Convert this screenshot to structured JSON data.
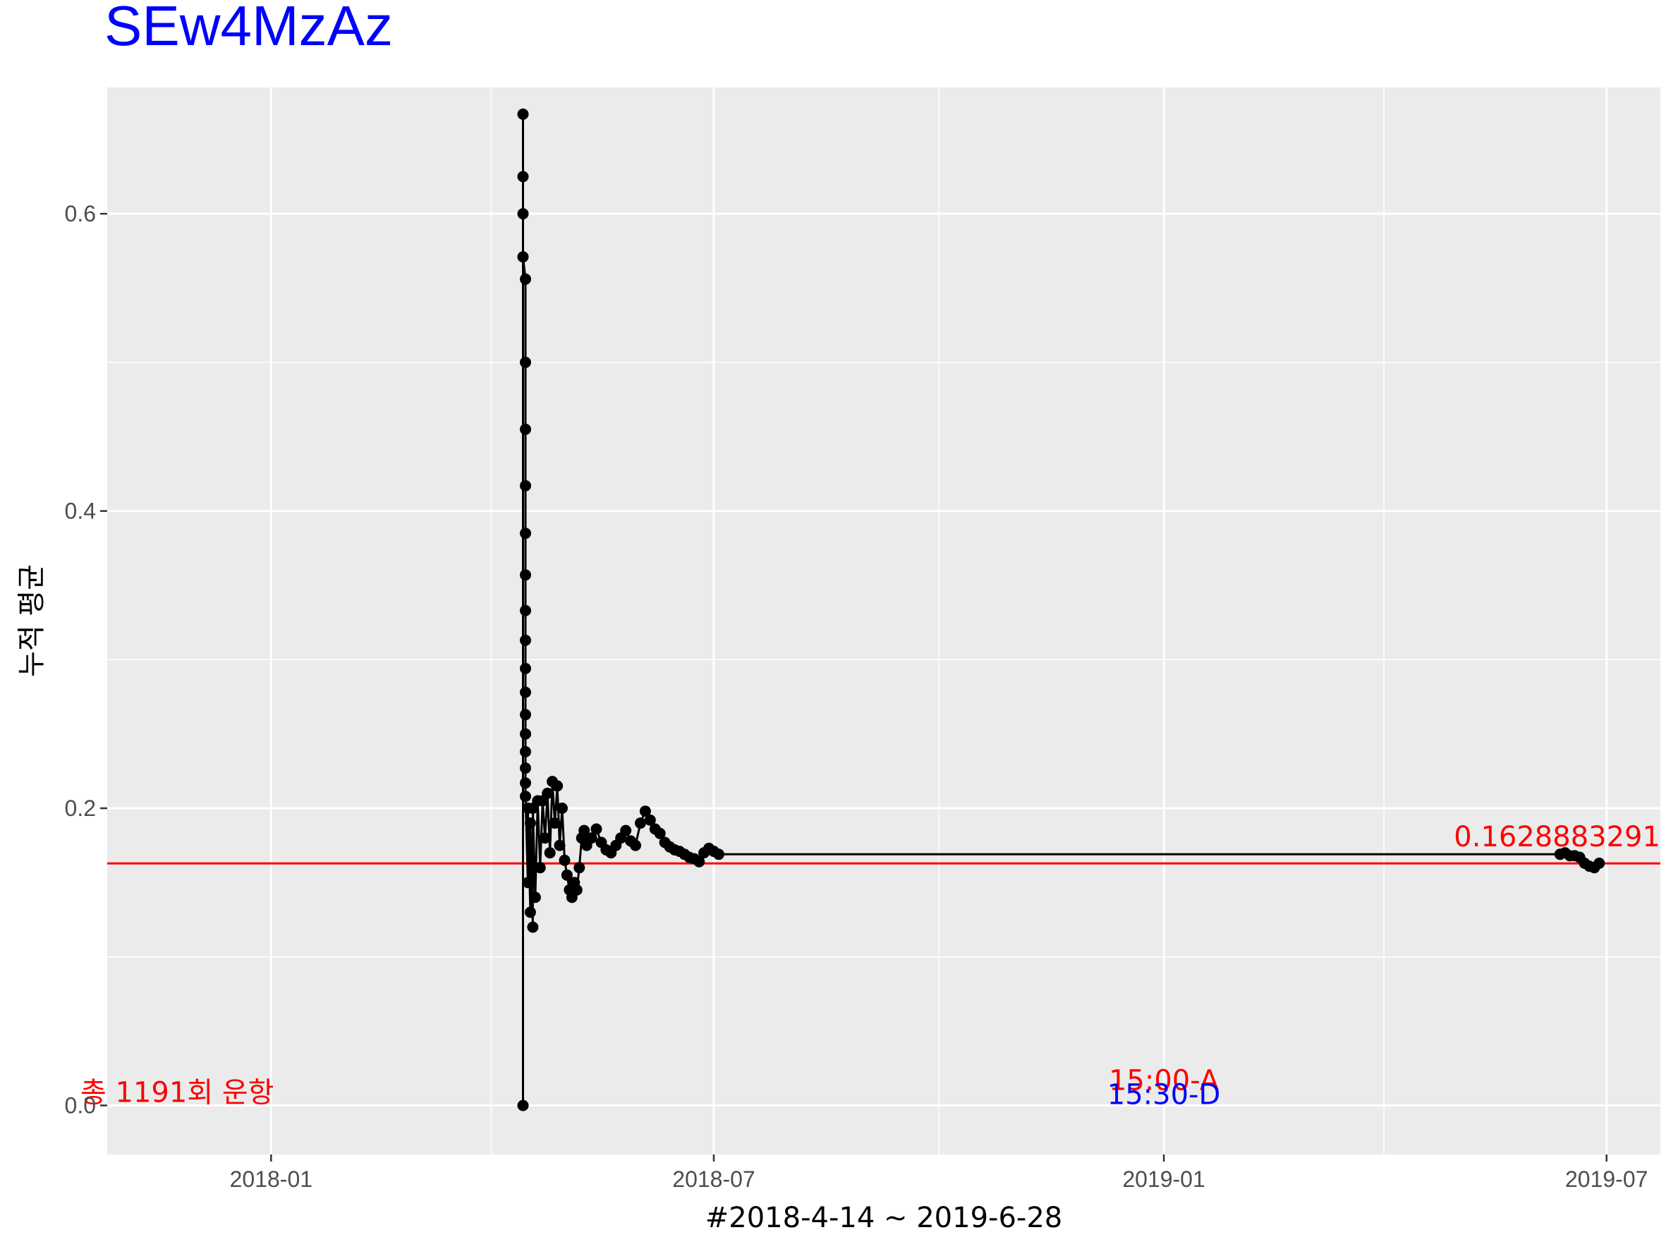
{
  "chart_data": {
    "type": "line",
    "title": "SEw4MzAz",
    "xlabel": "#2018-4-14 ~ 2019-6-28",
    "ylabel": "누적 평균",
    "x_range": [
      "2017-10-26",
      "2019-07-23"
    ],
    "ylim": [
      -0.033,
      0.685
    ],
    "x_ticks": [
      {
        "date": "2018-01-01",
        "label": "2018-01"
      },
      {
        "date": "2018-07-01",
        "label": "2018-07"
      },
      {
        "date": "2019-01-01",
        "label": "2019-01"
      },
      {
        "date": "2019-07-01",
        "label": "2019-07"
      }
    ],
    "x_minor_ticks": [
      "2017-10-01",
      "2018-04-01",
      "2018-10-01",
      "2019-04-01"
    ],
    "y_ticks": [
      {
        "value": 0.0,
        "label": "0.0"
      },
      {
        "value": 0.2,
        "label": "0.2"
      },
      {
        "value": 0.4,
        "label": "0.4"
      },
      {
        "value": 0.6,
        "label": "0.6"
      }
    ],
    "y_minor_ticks": [
      0.1,
      0.3,
      0.5
    ],
    "grid": true,
    "series": [
      {
        "values": [
          [
            "2018-04-14",
            0.0
          ],
          [
            "2018-04-14",
            0.667
          ],
          [
            "2018-04-14",
            0.625
          ],
          [
            "2018-04-14",
            0.6
          ],
          [
            "2018-04-14",
            0.571
          ],
          [
            "2018-04-15",
            0.556
          ],
          [
            "2018-04-15",
            0.5
          ],
          [
            "2018-04-15",
            0.455
          ],
          [
            "2018-04-15",
            0.417
          ],
          [
            "2018-04-15",
            0.385
          ],
          [
            "2018-04-15",
            0.357
          ],
          [
            "2018-04-15",
            0.333
          ],
          [
            "2018-04-15",
            0.313
          ],
          [
            "2018-04-15",
            0.294
          ],
          [
            "2018-04-15",
            0.278
          ],
          [
            "2018-04-15",
            0.263
          ],
          [
            "2018-04-15",
            0.25
          ],
          [
            "2018-04-15",
            0.238
          ],
          [
            "2018-04-15",
            0.227
          ],
          [
            "2018-04-15",
            0.217
          ],
          [
            "2018-04-15",
            0.208
          ],
          [
            "2018-04-16",
            0.15
          ],
          [
            "2018-04-16",
            0.2
          ],
          [
            "2018-04-17",
            0.13
          ],
          [
            "2018-04-17",
            0.19
          ],
          [
            "2018-04-18",
            0.12
          ],
          [
            "2018-04-18",
            0.2
          ],
          [
            "2018-04-19",
            0.14
          ],
          [
            "2018-04-20",
            0.205
          ],
          [
            "2018-04-21",
            0.16
          ],
          [
            "2018-04-22",
            0.205
          ],
          [
            "2018-04-23",
            0.18
          ],
          [
            "2018-04-24",
            0.21
          ],
          [
            "2018-04-25",
            0.17
          ],
          [
            "2018-04-26",
            0.218
          ],
          [
            "2018-04-27",
            0.19
          ],
          [
            "2018-04-28",
            0.215
          ],
          [
            "2018-04-29",
            0.175
          ],
          [
            "2018-04-30",
            0.2
          ],
          [
            "2018-05-01",
            0.165
          ],
          [
            "2018-05-02",
            0.155
          ],
          [
            "2018-05-03",
            0.145
          ],
          [
            "2018-05-04",
            0.14
          ],
          [
            "2018-05-05",
            0.15
          ],
          [
            "2018-05-06",
            0.145
          ],
          [
            "2018-05-07",
            0.16
          ],
          [
            "2018-05-08",
            0.18
          ],
          [
            "2018-05-09",
            0.185
          ],
          [
            "2018-05-10",
            0.175
          ],
          [
            "2018-05-12",
            0.18
          ],
          [
            "2018-05-14",
            0.186
          ],
          [
            "2018-05-16",
            0.177
          ],
          [
            "2018-05-18",
            0.172
          ],
          [
            "2018-05-20",
            0.17
          ],
          [
            "2018-05-22",
            0.175
          ],
          [
            "2018-05-24",
            0.18
          ],
          [
            "2018-05-26",
            0.185
          ],
          [
            "2018-05-28",
            0.178
          ],
          [
            "2018-05-30",
            0.175
          ],
          [
            "2018-06-01",
            0.19
          ],
          [
            "2018-06-03",
            0.198
          ],
          [
            "2018-06-05",
            0.192
          ],
          [
            "2018-06-07",
            0.186
          ],
          [
            "2018-06-09",
            0.183
          ],
          [
            "2018-06-11",
            0.177
          ],
          [
            "2018-06-13",
            0.174
          ],
          [
            "2018-06-15",
            0.172
          ],
          [
            "2018-06-17",
            0.171
          ],
          [
            "2018-06-19",
            0.169
          ],
          [
            "2018-06-21",
            0.167
          ],
          [
            "2018-06-23",
            0.166
          ],
          [
            "2018-06-25",
            0.164
          ],
          [
            "2018-06-27",
            0.17
          ],
          [
            "2018-06-29",
            0.173
          ],
          [
            "2018-07-01",
            0.171
          ],
          [
            "2018-07-03",
            0.169
          ],
          [
            "2019-06-12",
            0.169
          ],
          [
            "2019-06-14",
            0.17
          ],
          [
            "2019-06-16",
            0.168
          ],
          [
            "2019-06-18",
            0.168
          ],
          [
            "2019-06-20",
            0.167
          ],
          [
            "2019-06-22",
            0.163
          ],
          [
            "2019-06-24",
            0.161
          ],
          [
            "2019-06-26",
            0.16
          ],
          [
            "2019-06-28",
            0.163
          ]
        ]
      }
    ],
    "hline": {
      "value": 0.16288832913,
      "color": "#ff0000"
    },
    "annotations": {
      "hline_label": "0.16288832913",
      "count_prefix": "총 ",
      "count_number": "1191",
      "count_suffix": "회 운항",
      "time_a": "15:00-A",
      "time_d": "15:30-D"
    },
    "colors": {
      "panel": "#ebebeb",
      "grid": "#ffffff",
      "line": "#000000",
      "title": "#0000ff",
      "red": "#ff0000",
      "blue": "#0000ff",
      "tick_text": "#4d4d4d",
      "tick_mark": "#333333"
    }
  }
}
